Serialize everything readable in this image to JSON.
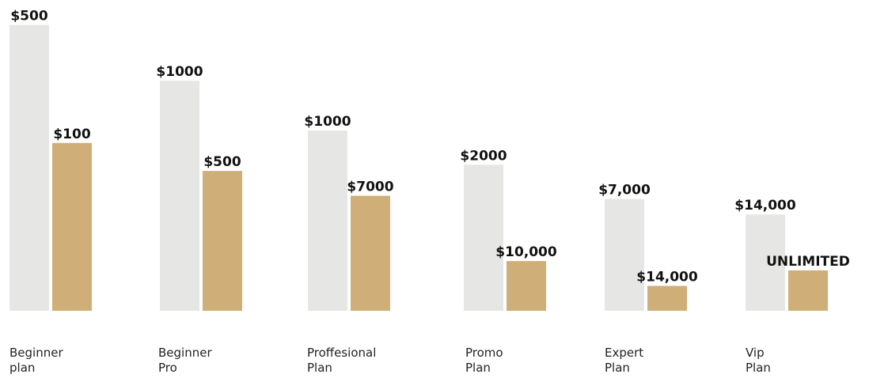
{
  "chart_data": {
    "type": "bar",
    "categories": [
      [
        "Beginner",
        "plan"
      ],
      [
        "Beginner",
        "Pro"
      ],
      [
        "Proffesional",
        "Plan"
      ],
      [
        "Promo",
        "Plan"
      ],
      [
        "Expert",
        "Plan"
      ],
      [
        "Vip",
        "Plan"
      ]
    ],
    "series": [
      {
        "bar_level": [
          0.92,
          0.74,
          0.58,
          0.47,
          0.36,
          0.31
        ],
        "labels": [
          "$500",
          "$1000",
          "$1000",
          "$2000",
          "$7,000",
          "$14,000"
        ],
        "color": "#e6e7e5"
      },
      {
        "bar_level": [
          0.54,
          0.45,
          0.37,
          0.16,
          0.08,
          0.13
        ],
        "labels": [
          "$100",
          "$500",
          "$7000",
          "$10,000",
          "$14,000",
          "UNLIMITED"
        ],
        "color": "#cfae78"
      }
    ]
  }
}
